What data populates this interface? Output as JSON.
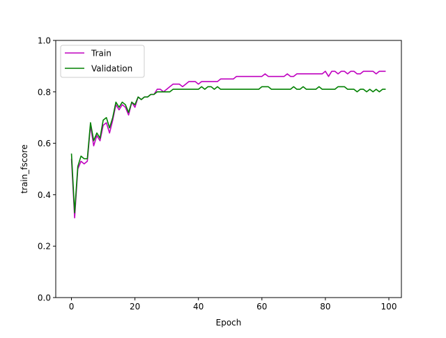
{
  "chart_data": {
    "type": "line",
    "title": "",
    "xlabel": "Epoch",
    "ylabel": "train_fscore",
    "xlim": [
      -4.95,
      103.95
    ],
    "ylim": [
      0.0,
      1.0
    ],
    "x_ticks": [
      0,
      20,
      40,
      60,
      80,
      100
    ],
    "y_ticks": [
      0.0,
      0.2,
      0.4,
      0.6,
      0.8,
      1.0
    ],
    "x_tick_labels": [
      "0",
      "20",
      "40",
      "60",
      "80",
      "100"
    ],
    "y_tick_labels": [
      "0.0",
      "0.2",
      "0.4",
      "0.6",
      "0.8",
      "1.0"
    ],
    "grid": false,
    "legend_position": "upper-left",
    "x": [
      0,
      1,
      2,
      3,
      4,
      5,
      6,
      7,
      8,
      9,
      10,
      11,
      12,
      13,
      14,
      15,
      16,
      17,
      18,
      19,
      20,
      21,
      22,
      23,
      24,
      25,
      26,
      27,
      28,
      29,
      30,
      31,
      32,
      33,
      34,
      35,
      36,
      37,
      38,
      39,
      40,
      41,
      42,
      43,
      44,
      45,
      46,
      47,
      48,
      49,
      50,
      51,
      52,
      53,
      54,
      55,
      56,
      57,
      58,
      59,
      60,
      61,
      62,
      63,
      64,
      65,
      66,
      67,
      68,
      69,
      70,
      71,
      72,
      73,
      74,
      75,
      76,
      77,
      78,
      79,
      80,
      81,
      82,
      83,
      84,
      85,
      86,
      87,
      88,
      89,
      90,
      91,
      92,
      93,
      94,
      95,
      96,
      97,
      98,
      99
    ],
    "series": [
      {
        "name": "Train",
        "color": "#bf00bf",
        "values": [
          0.54,
          0.31,
          0.5,
          0.53,
          0.52,
          0.53,
          0.67,
          0.59,
          0.63,
          0.61,
          0.67,
          0.68,
          0.64,
          0.69,
          0.75,
          0.73,
          0.75,
          0.74,
          0.71,
          0.76,
          0.74,
          0.78,
          0.77,
          0.78,
          0.78,
          0.79,
          0.79,
          0.81,
          0.81,
          0.8,
          0.81,
          0.82,
          0.83,
          0.83,
          0.83,
          0.82,
          0.83,
          0.84,
          0.84,
          0.84,
          0.83,
          0.84,
          0.84,
          0.84,
          0.84,
          0.84,
          0.84,
          0.85,
          0.85,
          0.85,
          0.85,
          0.85,
          0.86,
          0.86,
          0.86,
          0.86,
          0.86,
          0.86,
          0.86,
          0.86,
          0.86,
          0.87,
          0.86,
          0.86,
          0.86,
          0.86,
          0.86,
          0.86,
          0.87,
          0.86,
          0.86,
          0.87,
          0.87,
          0.87,
          0.87,
          0.87,
          0.87,
          0.87,
          0.87,
          0.87,
          0.88,
          0.86,
          0.88,
          0.88,
          0.87,
          0.88,
          0.88,
          0.87,
          0.88,
          0.88,
          0.87,
          0.87,
          0.88,
          0.88,
          0.88,
          0.88,
          0.87,
          0.88,
          0.88,
          0.88
        ]
      },
      {
        "name": "Validation",
        "color": "#008000",
        "values": [
          0.56,
          0.33,
          0.51,
          0.55,
          0.54,
          0.54,
          0.68,
          0.61,
          0.64,
          0.62,
          0.69,
          0.7,
          0.66,
          0.7,
          0.76,
          0.74,
          0.76,
          0.75,
          0.72,
          0.76,
          0.75,
          0.78,
          0.77,
          0.78,
          0.78,
          0.79,
          0.79,
          0.8,
          0.8,
          0.8,
          0.8,
          0.8,
          0.81,
          0.81,
          0.81,
          0.81,
          0.81,
          0.81,
          0.81,
          0.81,
          0.81,
          0.82,
          0.81,
          0.82,
          0.82,
          0.81,
          0.82,
          0.81,
          0.81,
          0.81,
          0.81,
          0.81,
          0.81,
          0.81,
          0.81,
          0.81,
          0.81,
          0.81,
          0.81,
          0.81,
          0.82,
          0.82,
          0.82,
          0.81,
          0.81,
          0.81,
          0.81,
          0.81,
          0.81,
          0.81,
          0.82,
          0.81,
          0.81,
          0.82,
          0.81,
          0.81,
          0.81,
          0.81,
          0.82,
          0.81,
          0.81,
          0.81,
          0.81,
          0.81,
          0.82,
          0.82,
          0.82,
          0.81,
          0.81,
          0.81,
          0.8,
          0.81,
          0.81,
          0.8,
          0.81,
          0.8,
          0.81,
          0.8,
          0.81,
          0.81
        ]
      }
    ]
  }
}
